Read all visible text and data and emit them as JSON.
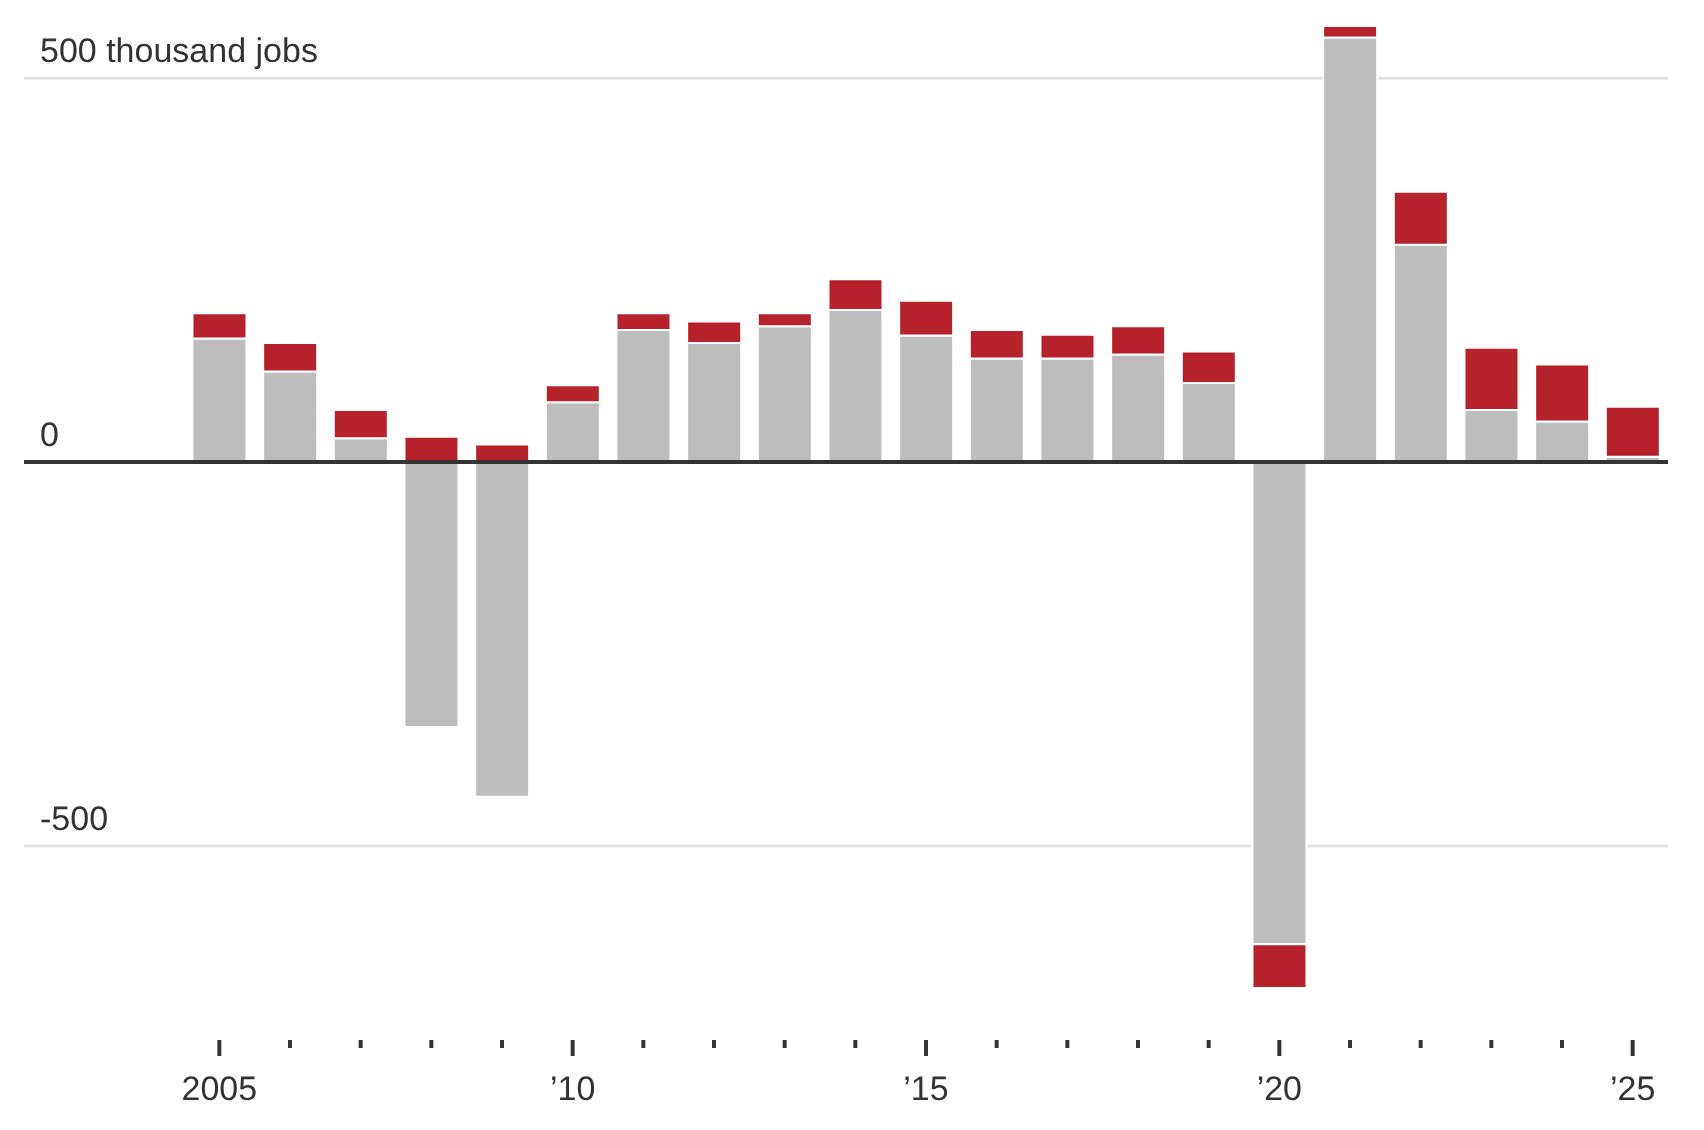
{
  "chart_data": {
    "type": "bar",
    "stacked": true,
    "categories": [
      "2005",
      null,
      null,
      null,
      null,
      "’10",
      null,
      null,
      null,
      null,
      "’15",
      null,
      null,
      null,
      null,
      "’20",
      null,
      null,
      null,
      null,
      "’25"
    ],
    "series": [
      {
        "color": "#bdbdbd",
        "values": [
          161,
          118,
          31,
          -345,
          -436,
          78,
          172,
          155,
          177,
          198,
          165,
          135,
          135,
          140,
          103,
          -628,
          553,
          283,
          68,
          53,
          7
        ]
      },
      {
        "color": "#b5222b",
        "values": [
          33,
          37,
          37,
          33,
          23,
          22,
          22,
          28,
          17,
          40,
          45,
          37,
          31,
          37,
          41,
          -57,
          15,
          69,
          81,
          74,
          65
        ]
      }
    ],
    "ylim": [
      -685,
      568
    ],
    "yticks": [
      -500,
      0,
      {
        "value": 500,
        "label": "500 thousand jobs"
      }
    ],
    "grid": "y",
    "ref_lines": [
      {
        "axis": "y",
        "value": 0,
        "color": "#333333"
      }
    ]
  }
}
